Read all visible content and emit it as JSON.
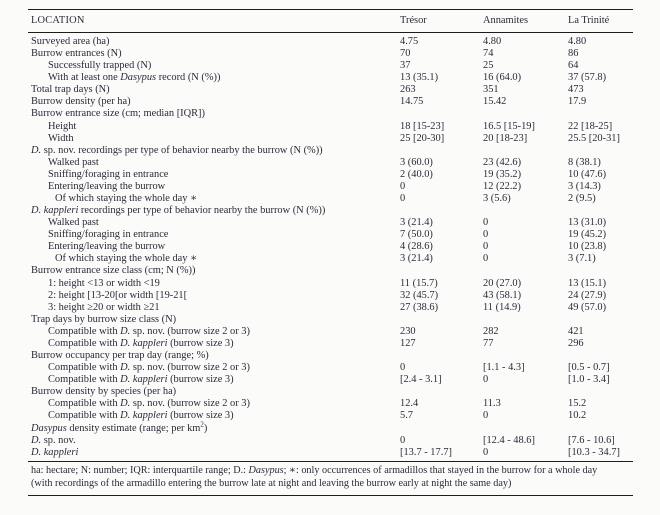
{
  "colors": {
    "text": "#2a2a3c",
    "rule": "#1d1d1d",
    "background": "#fbfbf9"
  },
  "table": {
    "columns": [
      "LOCATION",
      "Trésor",
      "Annamites",
      "La Trinité"
    ],
    "rows": [
      {
        "indent": 0,
        "label": [
          {
            "t": "Surveyed area (ha)"
          }
        ],
        "values": [
          "4.75",
          "4.80",
          "4.80"
        ]
      },
      {
        "indent": 0,
        "label": [
          {
            "t": "Burrow entrances (N)"
          }
        ],
        "values": [
          "70",
          "74",
          "86"
        ]
      },
      {
        "indent": 1,
        "label": [
          {
            "t": "Successfully trapped (N)"
          }
        ],
        "values": [
          "37",
          "25",
          "64"
        ]
      },
      {
        "indent": 1,
        "label": [
          {
            "t": "With at least one "
          },
          {
            "t": "Dasypus",
            "i": true
          },
          {
            "t": " record (N (%))"
          }
        ],
        "values": [
          "13 (35.1)",
          "16 (64.0)",
          "37 (57.8)"
        ]
      },
      {
        "indent": 0,
        "label": [
          {
            "t": "Total trap days (N)"
          }
        ],
        "values": [
          "263",
          "351",
          "473"
        ]
      },
      {
        "indent": 0,
        "label": [
          {
            "t": "Burrow density (per ha)"
          }
        ],
        "values": [
          "14.75",
          "15.42",
          "17.9"
        ]
      },
      {
        "indent": 0,
        "label": [
          {
            "t": "Burrow entrance size (cm; median [IQR])"
          }
        ],
        "values": [
          "",
          "",
          ""
        ]
      },
      {
        "indent": 1,
        "label": [
          {
            "t": "Height"
          }
        ],
        "values": [
          "18 [15-23]",
          "16.5 [15-19]",
          "22 [18-25]"
        ]
      },
      {
        "indent": 1,
        "label": [
          {
            "t": "Width"
          }
        ],
        "values": [
          "25 [20-30]",
          "20 [18-23]",
          "25.5 [20-31]"
        ]
      },
      {
        "indent": 0,
        "label": [
          {
            "t": "D.",
            "i": true
          },
          {
            "t": " sp. nov. recordings per type of behavior nearby the burrow (N (%))"
          }
        ],
        "values": [
          "",
          "",
          ""
        ]
      },
      {
        "indent": 1,
        "label": [
          {
            "t": "Walked past"
          }
        ],
        "values": [
          "3 (60.0)",
          "23 (42.6)",
          "8 (38.1)"
        ]
      },
      {
        "indent": 1,
        "label": [
          {
            "t": "Sniffing/foraging in entrance"
          }
        ],
        "values": [
          "2 (40.0)",
          "19 (35.2)",
          "10 (47.6)"
        ]
      },
      {
        "indent": 1,
        "label": [
          {
            "t": "Entering/leaving the burrow"
          }
        ],
        "values": [
          "0",
          "12 (22.2)",
          "3 (14.3)"
        ]
      },
      {
        "indent": 2,
        "label": [
          {
            "t": "Of which staying the whole day ∗"
          }
        ],
        "values": [
          "0",
          "3 (5.6)",
          "2 (9.5)"
        ]
      },
      {
        "indent": 0,
        "label": [
          {
            "t": "D. kappleri",
            "i": true
          },
          {
            "t": " recordings per type of behavior nearby the burrow (N (%))"
          }
        ],
        "values": [
          "",
          "",
          ""
        ]
      },
      {
        "indent": 1,
        "label": [
          {
            "t": "Walked past"
          }
        ],
        "values": [
          "3 (21.4)",
          "0",
          "13 (31.0)"
        ]
      },
      {
        "indent": 1,
        "label": [
          {
            "t": "Sniffing/foraging in entrance"
          }
        ],
        "values": [
          "7 (50.0)",
          "0",
          "19 (45.2)"
        ]
      },
      {
        "indent": 1,
        "label": [
          {
            "t": "Entering/leaving the burrow"
          }
        ],
        "values": [
          "4 (28.6)",
          "0",
          "10 (23.8)"
        ]
      },
      {
        "indent": 2,
        "label": [
          {
            "t": "Of which staying the whole day ∗"
          }
        ],
        "values": [
          "3 (21.4)",
          "0",
          "3 (7.1)"
        ]
      },
      {
        "indent": 0,
        "label": [
          {
            "t": "Burrow entrance size class (cm; N (%))"
          }
        ],
        "values": [
          "",
          "",
          ""
        ]
      },
      {
        "indent": 1,
        "label": [
          {
            "t": "1: height <13 or width <19"
          }
        ],
        "values": [
          "11 (15.7)",
          "20 (27.0)",
          "13 (15.1)"
        ]
      },
      {
        "indent": 1,
        "label": [
          {
            "t": "2: height [13-20[or width [19-21["
          }
        ],
        "values": [
          "32 (45.7)",
          "43 (58.1)",
          "24 (27.9)"
        ]
      },
      {
        "indent": 1,
        "label": [
          {
            "t": "3: height ≥20 or width ≥21"
          }
        ],
        "values": [
          "27 (38.6)",
          "11 (14.9)",
          "49 (57.0)"
        ]
      },
      {
        "indent": 0,
        "label": [
          {
            "t": "Trap days by burrow size class (N)"
          }
        ],
        "values": [
          "",
          "",
          ""
        ]
      },
      {
        "indent": 1,
        "label": [
          {
            "t": "Compatible with "
          },
          {
            "t": "D.",
            "i": true
          },
          {
            "t": " sp. nov. (burrow size 2 or 3)"
          }
        ],
        "values": [
          "230",
          "282",
          "421"
        ]
      },
      {
        "indent": 1,
        "label": [
          {
            "t": "Compatible with "
          },
          {
            "t": "D. kappleri",
            "i": true
          },
          {
            "t": " (burrow size 3)"
          }
        ],
        "values": [
          "127",
          "77",
          "296"
        ]
      },
      {
        "indent": 0,
        "label": [
          {
            "t": "Burrow occupancy per trap day (range; %)"
          }
        ],
        "values": [
          "",
          "",
          ""
        ]
      },
      {
        "indent": 1,
        "label": [
          {
            "t": "Compatible with "
          },
          {
            "t": "D.",
            "i": true
          },
          {
            "t": " sp. nov. (burrow size 2 or 3)"
          }
        ],
        "values": [
          "0",
          "[1.1 - 4.3]",
          "[0.5 - 0.7]"
        ]
      },
      {
        "indent": 1,
        "label": [
          {
            "t": "Compatible with "
          },
          {
            "t": "D. kappleri",
            "i": true
          },
          {
            "t": " (burrow size 3)"
          }
        ],
        "values": [
          "[2.4 - 3.1]",
          "0",
          "[1.0 - 3.4]"
        ]
      },
      {
        "indent": 0,
        "label": [
          {
            "t": "Burrow density by species (per ha)"
          }
        ],
        "values": [
          "",
          "",
          ""
        ]
      },
      {
        "indent": 1,
        "label": [
          {
            "t": "Compatible with "
          },
          {
            "t": "D.",
            "i": true
          },
          {
            "t": " sp. nov. (burrow size 2 or 3)"
          }
        ],
        "values": [
          "12.4",
          "11.3",
          "15.2"
        ]
      },
      {
        "indent": 1,
        "label": [
          {
            "t": "Compatible with "
          },
          {
            "t": "D. kappleri",
            "i": true
          },
          {
            "t": " (burrow size 3)"
          }
        ],
        "values": [
          "5.7",
          "0",
          "10.2"
        ]
      },
      {
        "indent": 0,
        "label": [
          {
            "t": "Dasypus",
            "i": true
          },
          {
            "t": " density estimate (range; per km"
          },
          {
            "t": "2",
            "sup": true
          },
          {
            "t": ")"
          }
        ],
        "values": [
          "",
          "",
          ""
        ]
      },
      {
        "indent": 0,
        "label": [
          {
            "t": "D.",
            "i": true
          },
          {
            "t": " sp. nov."
          }
        ],
        "values": [
          "0",
          "[12.4 - 48.6]",
          "[7.6 - 10.6]"
        ]
      },
      {
        "indent": 0,
        "label": [
          {
            "t": "D. kappleri",
            "i": true
          }
        ],
        "values": [
          "[13.7 - 17.7]",
          "0",
          "[10.3 - 34.7]"
        ]
      }
    ],
    "footnote": [
      {
        "t": "ha: hectare; N: number; IQR: interquartile range; D.: "
      },
      {
        "t": "Dasypus",
        "i": true
      },
      {
        "t": "; ∗: only occurrences of armadillos that stayed in the burrow for a whole day"
      },
      {
        "br": true
      },
      {
        "t": "(with recordings of the armadillo entering the burrow late at night and leaving the burrow early at night the same day)"
      }
    ]
  }
}
